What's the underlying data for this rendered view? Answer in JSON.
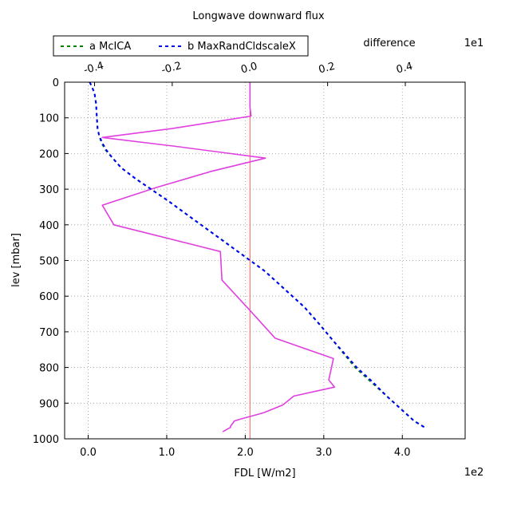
{
  "chart_data": {
    "type": "line",
    "title": "Longwave downward flux",
    "xlabel": "FDL [W/m2]",
    "ylabel": "lev [mbar]",
    "x_scale_note": "1e2",
    "xlim": [
      -0.3,
      4.8
    ],
    "xticks": [
      0,
      1,
      2,
      3,
      4
    ],
    "xtick_labels": [
      "0.0",
      "1.0",
      "2.0",
      "3.0",
      "4.0"
    ],
    "ylim": [
      1000,
      0
    ],
    "yticks": [
      0,
      100,
      200,
      300,
      400,
      500,
      600,
      700,
      800,
      900,
      1000
    ],
    "ytick_labels": [
      "0",
      "100",
      "200",
      "300",
      "400",
      "500",
      "600",
      "700",
      "800",
      "900",
      "1000"
    ],
    "grid": true,
    "legend_position": "top-left, above axes",
    "top_axis": {
      "label": "difference",
      "scale_note": "1e1",
      "color": "#e040e0",
      "xlim": [
        -0.477,
        0.554
      ],
      "xticks": [
        -0.4,
        -0.2,
        0.0,
        0.2,
        0.4
      ],
      "xtick_labels": [
        "-0.4",
        "-0.2",
        "0.0",
        "0.2",
        "0.4"
      ]
    },
    "series": [
      {
        "name": "a McICA",
        "color": "#008000",
        "style": "dashed",
        "axis": "bottom",
        "x": [
          0.02,
          0.05,
          0.08,
          0.1,
          0.11,
          0.12,
          0.14,
          0.17,
          0.22,
          0.3,
          0.42,
          0.6,
          0.8,
          1.0,
          1.25,
          1.5,
          1.75,
          2.0,
          2.25,
          2.5,
          2.75,
          2.95,
          3.1,
          3.25,
          3.4,
          3.6,
          3.8,
          4.0,
          4.15,
          4.3
        ],
        "y": [
          0,
          15,
          30,
          60,
          100,
          130,
          150,
          170,
          190,
          210,
          240,
          270,
          300,
          330,
          370,
          410,
          450,
          490,
          530,
          580,
          630,
          680,
          720,
          760,
          800,
          840,
          880,
          920,
          950,
          970
        ]
      },
      {
        "name": "b MaxRandCldscaleX",
        "color": "#0000ff",
        "style": "dashed",
        "axis": "bottom",
        "x": [
          0.02,
          0.05,
          0.08,
          0.1,
          0.11,
          0.12,
          0.14,
          0.18,
          0.23,
          0.3,
          0.42,
          0.6,
          0.8,
          1.0,
          1.25,
          1.5,
          1.75,
          2.0,
          2.25,
          2.5,
          2.75,
          2.95,
          3.1,
          3.26,
          3.42,
          3.62,
          3.8,
          4.0,
          4.15,
          4.3
        ],
        "y": [
          0,
          15,
          30,
          60,
          100,
          130,
          150,
          170,
          190,
          210,
          240,
          270,
          300,
          330,
          370,
          410,
          450,
          490,
          530,
          580,
          630,
          680,
          720,
          760,
          800,
          840,
          880,
          920,
          950,
          970
        ]
      },
      {
        "name": "difference",
        "color": "#e040e0",
        "style": "solid",
        "axis": "top",
        "x": [
          0.0,
          0.0,
          0.003,
          -0.2,
          -0.38,
          -0.19,
          0.04,
          -0.1,
          -0.24,
          -0.38,
          -0.35,
          -0.076,
          -0.072,
          0.0,
          0.065,
          0.215,
          0.203,
          0.218,
          0.113,
          0.085,
          0.035,
          -0.025,
          -0.04,
          -0.05,
          -0.05,
          -0.07
        ],
        "y": [
          0,
          70,
          95,
          130,
          155,
          180,
          213,
          250,
          295,
          345,
          400,
          475,
          555,
          640,
          718,
          775,
          835,
          855,
          880,
          905,
          927,
          945,
          950,
          965,
          968,
          980
        ]
      }
    ],
    "vertical_line": {
      "axis": "top",
      "x": 0.0,
      "color": "#ff3333"
    }
  }
}
